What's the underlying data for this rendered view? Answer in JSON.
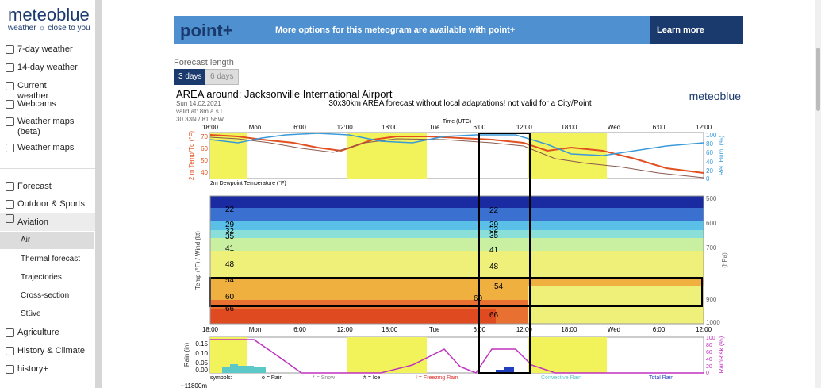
{
  "sidebar": {
    "logo": "meteoblue",
    "tagline": "weather ☼ close to you",
    "items": [
      "7-day weather",
      "14-day weather",
      "Current weather",
      "Webcams",
      "Weather maps (beta)",
      "Weather maps"
    ],
    "menu": [
      "Forecast",
      "Outdoor & Sports",
      "Aviation"
    ],
    "sub": [
      "Air",
      "Thermal forecast",
      "Trajectories",
      "Cross-section",
      "Stüve"
    ],
    "menu2": [
      "Agriculture",
      "History & Climate",
      "history+"
    ]
  },
  "banner": {
    "brand": "point+",
    "text": "More options for this meteogram are available with point+",
    "button": "Learn more"
  },
  "forecast": {
    "label": "Forecast length",
    "options": [
      "3 days",
      "6 days"
    ]
  },
  "meteogram": {
    "title": "AREA around: Jacksonville International Airport",
    "date": "Sun 14.02.2021",
    "valid": "valid at: 8m a.s.l.",
    "coords": "30.33N / 81.56W",
    "note": "30x30km AREA forecast without local adaptations! not valid for a City/Point",
    "brand": "meteoblue",
    "time_axis": "Time (UTC)",
    "times": [
      "18:00",
      "Mon",
      "6:00",
      "12:00",
      "18:00",
      "Tue",
      "6:00",
      "12:00",
      "18:00",
      "Wed",
      "6:00",
      "12:00"
    ],
    "temp_label": "2 m Temp/Td (°F)",
    "temp_ticks": [
      "70",
      "60",
      "50",
      "40"
    ],
    "hum_label": "Rel. Hum. (%)",
    "pct_ticks": [
      "100",
      "80",
      "60",
      "40",
      "20",
      "0"
    ],
    "dew_label": "2m Dewpoint Temperature (°F)",
    "wind_label": "Temp (°F) / Wind (kt)",
    "hpa_label": "(hPa)",
    "hpa_ticks": [
      "500",
      "600",
      "700",
      "900",
      "1000"
    ],
    "iso_left": [
      "22",
      "29",
      "32",
      "35",
      "41",
      "48",
      "54",
      "60",
      "66"
    ],
    "iso_mid": [
      "22",
      "29",
      "32",
      "35",
      "41",
      "48",
      "54",
      "60",
      "66"
    ],
    "rain_label": "Rain (in)",
    "rain_ticks": [
      "0.15",
      "0.10",
      "0.05",
      "0.00"
    ],
    "risk_label": "RainRisk (%)",
    "legend": [
      "symbols:",
      "o = Rain",
      "* = Snow",
      "# = Ice",
      "! = Freezing Rain",
      "Convective Rain",
      "Total Rain"
    ],
    "altitude": "~11800m"
  }
}
